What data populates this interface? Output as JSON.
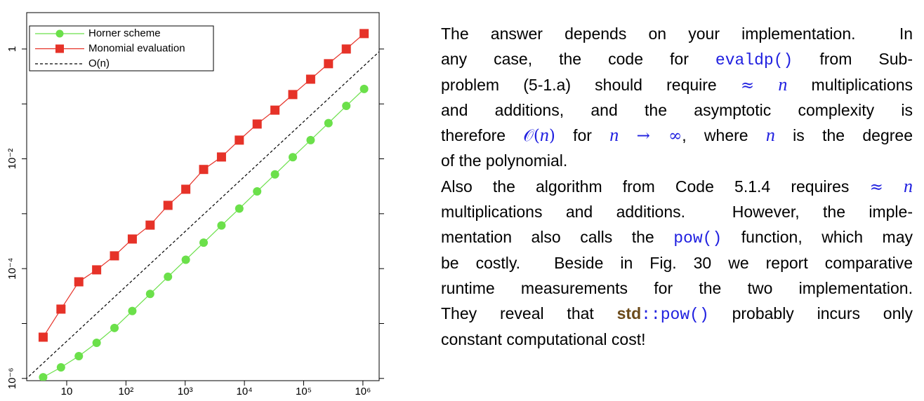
{
  "chart_data": {
    "type": "line",
    "xscale": "log",
    "yscale": "log",
    "legend": "upper left",
    "x": [
      4,
      8,
      16,
      32,
      64,
      128,
      256,
      512,
      1024,
      2048,
      4096,
      8192,
      16384,
      32768,
      65536,
      131072,
      262144,
      524288,
      1048576
    ],
    "series": [
      {
        "name": "Horner scheme",
        "color": "#6be04a",
        "marker": "circle",
        "values": [
          1.05e-06,
          1.59e-06,
          2.55e-06,
          4.45e-06,
          8.3e-06,
          1.69e-05,
          3.46e-05,
          7.1e-05,
          0.000145,
          0.000297,
          0.00061,
          0.00124,
          0.00255,
          0.0052,
          0.0107,
          0.0219,
          0.0447,
          0.092,
          0.187
        ]
      },
      {
        "name": "Monomial evaluation",
        "color": "#e63228",
        "marker": "square",
        "values": [
          5.64e-06,
          1.83e-05,
          5.75e-05,
          9.5e-05,
          0.000171,
          0.000346,
          0.00062,
          0.00142,
          0.00279,
          0.0064,
          0.0108,
          0.0219,
          0.043,
          0.077,
          0.148,
          0.282,
          0.54,
          1.0,
          1.91
        ]
      },
      {
        "name": "O(n)",
        "color": "#000000",
        "style": "dashed",
        "x": [
          2,
          2000000
        ],
        "values": [
          9.5e-07,
          0.95
        ]
      }
    ],
    "xlim": [
      2.11,
      1880000
    ],
    "ylim": [
      9.1e-07,
      4.6
    ],
    "xticks": [
      10,
      {
        "value": 100,
        "label": "10²"
      },
      {
        "value": 1000,
        "label": "10³"
      },
      {
        "value": 10000,
        "label": "10⁴"
      },
      {
        "value": 100000,
        "label": "10⁵"
      },
      {
        "value": 1000000,
        "label": "10⁶"
      }
    ],
    "yticks": [
      {
        "value": 1e-06,
        "label": "10⁻⁶"
      },
      {
        "value": 0.0001,
        "label": "10⁻⁴"
      },
      {
        "value": 0.01,
        "label": "10⁻²"
      },
      1
    ],
    "yminorticks": [
      1e-05,
      0.001,
      0.1
    ]
  },
  "document": {
    "lines": [
      [
        "The answer depends on your implementation.  In"
      ],
      [
        "any case, the code for ",
        "evaldp()",
        " from Sub-"
      ],
      [
        "problem (5-1.a) should require ",
        "≈",
        "n",
        " multiplications"
      ],
      [
        "and additions, and the asymptotic complexity is"
      ],
      [
        "therefore ",
        "𝒪(",
        "n",
        ")",
        " for ",
        "n",
        "→ ∞",
        ", where ",
        "n",
        " is the degree"
      ],
      [
        "of the polynomial."
      ],
      [
        "Also the algorithm from Code 5.1.4 requires ",
        "≈",
        "n"
      ],
      [
        "multiplications and additions.  However, the imple-"
      ],
      [
        "mentation also calls the ",
        "pow()",
        " function, which may"
      ],
      [
        "be costly.  Beside in Fig. 30 we report comparative"
      ],
      [
        "runtime measurements for the two implementation."
      ],
      [
        "They reveal that ",
        "std",
        "::pow()",
        " probably incurs only"
      ],
      [
        "constant computational cost!"
      ]
    ]
  }
}
